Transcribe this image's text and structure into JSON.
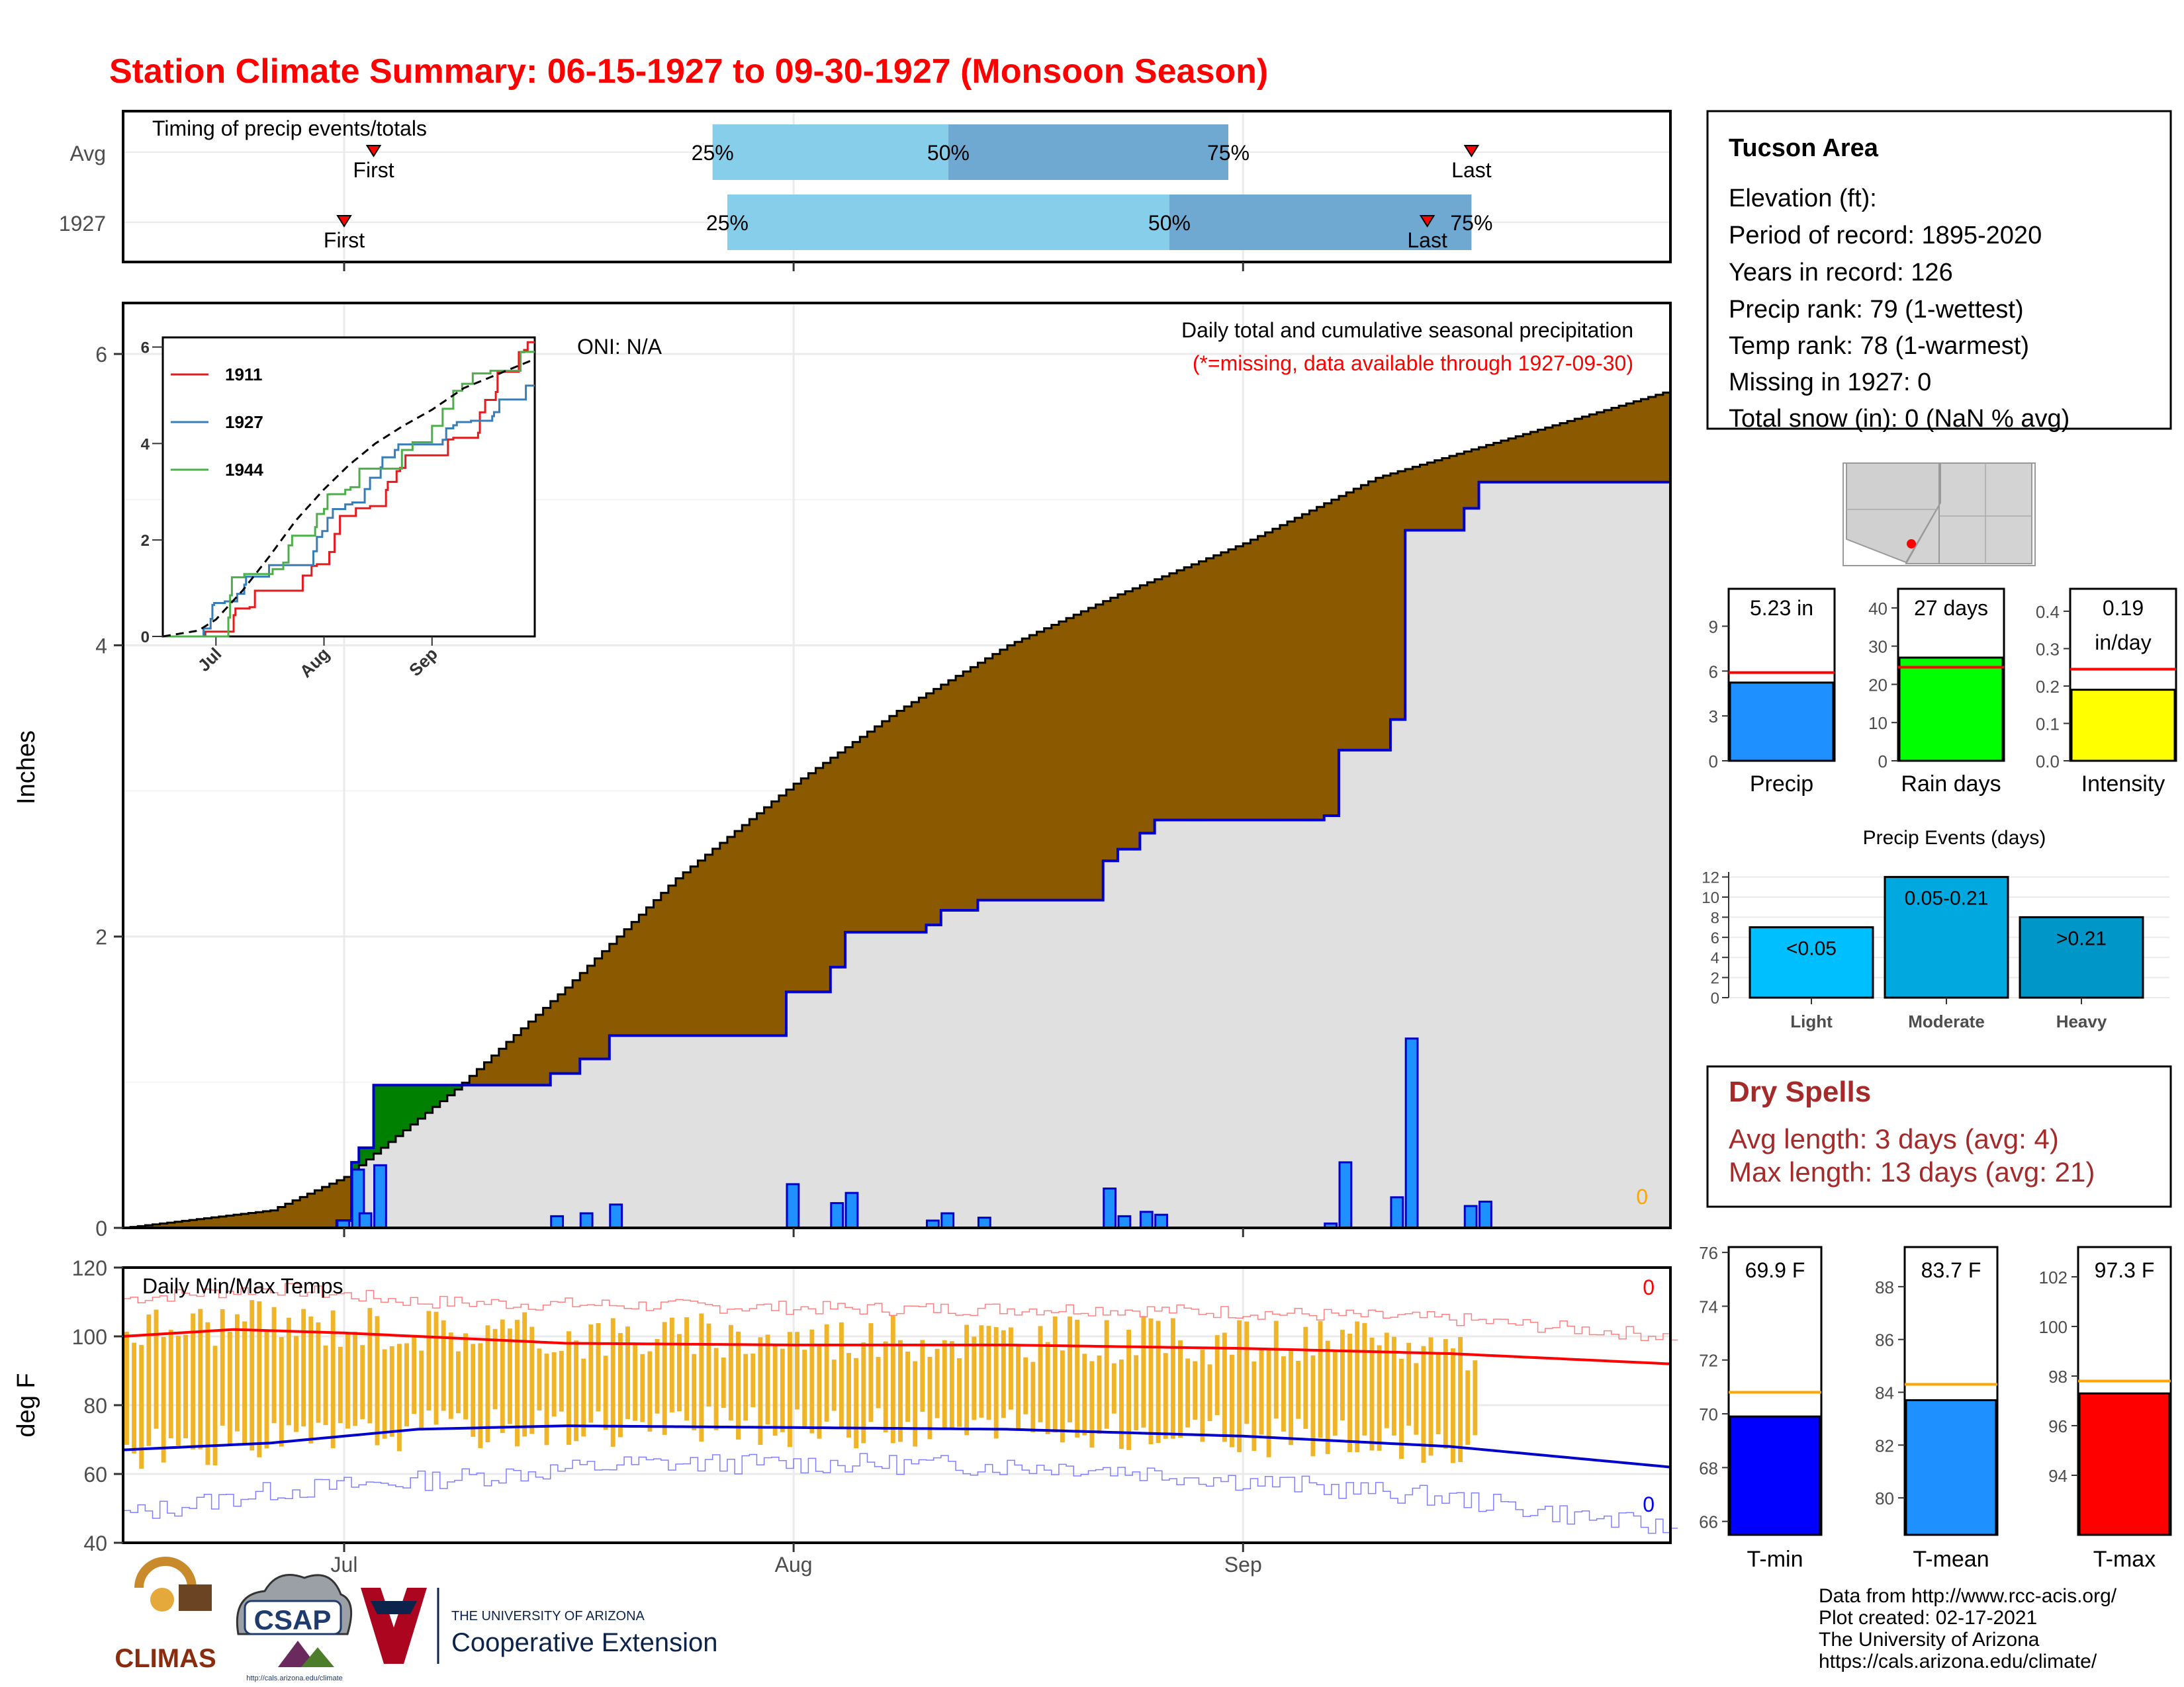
{
  "title": "Station Climate Summary: 06-15-1927 to 09-30-1927 (Monsoon Season)",
  "timing": {
    "label": "Timing of precip events/totals",
    "rows": [
      {
        "name": "Avg",
        "first_day": 34,
        "last_day": 183,
        "p25": 80,
        "p50": 112,
        "p75": 150
      },
      {
        "name": "1927",
        "first_day": 30,
        "last_day": 177,
        "p25": 82,
        "p50": 142,
        "p75": 183
      }
    ],
    "pct_labels": [
      "25%",
      "50%",
      "75%"
    ],
    "first_label": "First",
    "last_label": "Last"
  },
  "month_ticks": [
    {
      "label": "Jul",
      "day": 30
    },
    {
      "label": "Aug",
      "day": 91
    },
    {
      "label": "Sep",
      "day": 152
    }
  ],
  "main_chart": {
    "ylabel": "Inches",
    "yticks": [
      0,
      2,
      4,
      6
    ],
    "ylim": [
      0,
      6.35
    ],
    "oni": "ONI: N/A",
    "subtitle": "Daily total and cumulative seasonal precipitation",
    "note": "(*=missing, data available through 1927-09-30)",
    "missing_count": "0"
  },
  "inset": {
    "yticks": [
      "0",
      "2",
      "4",
      "6"
    ],
    "xticks": [
      "Jul",
      "Aug",
      "Sep"
    ],
    "legend": [
      {
        "name": "1911",
        "color": "#e41a1c"
      },
      {
        "name": "1927",
        "color": "#377eb8"
      },
      {
        "name": "1944",
        "color": "#4daf4a"
      }
    ]
  },
  "temp_chart": {
    "ylabel": "deg F",
    "label": "Daily Min/Max Temps",
    "yticks": [
      40,
      60,
      80,
      100,
      120
    ],
    "ylim": [
      40,
      120
    ],
    "max_missing": "0",
    "min_missing": "0"
  },
  "info": {
    "title": "Tucson Area",
    "lines": [
      "Elevation (ft):",
      "Period of record: 1895-2020",
      "Years in record: 126",
      "Precip rank: 79 (1-wettest)",
      "Temp rank: 78 (1-warmest)",
      "Missing in 1927: 0",
      "Total snow (in): 0 (NaN % avg)"
    ]
  },
  "mini_bars": [
    {
      "name": "Precip",
      "value": 5.23,
      "avg": 5.9,
      "label": "5.23 in",
      "ymax": 11.5,
      "ticks": [
        "0",
        "3",
        "6",
        "9"
      ],
      "tick_vals": [
        0,
        3,
        6,
        9
      ],
      "color": "#1e90ff"
    },
    {
      "name": "Rain days",
      "value": 27,
      "avg": 24.5,
      "label": "27 days",
      "ymax": 45,
      "ticks": [
        "0",
        "10",
        "20",
        "30",
        "40"
      ],
      "tick_vals": [
        0,
        10,
        20,
        30,
        40
      ],
      "color": "#00ff00"
    },
    {
      "name": "Intensity",
      "value": 0.19,
      "avg": 0.245,
      "label": "0.19",
      "label2": "in/day",
      "ymax": 0.46,
      "ticks": [
        "0.0",
        "0.1",
        "0.2",
        "0.3",
        "0.4"
      ],
      "tick_vals": [
        0,
        0.1,
        0.2,
        0.3,
        0.4
      ],
      "color": "#ffff00"
    }
  ],
  "events": {
    "title": "Precip Events (days)",
    "categories": [
      "Light",
      "Moderate",
      "Heavy"
    ],
    "values": [
      7,
      12,
      8
    ],
    "labels": [
      "<0.05",
      "0.05-0.21",
      ">0.21"
    ],
    "colors": [
      "#00bfff",
      "#00a8e0",
      "#0096c7"
    ],
    "yticks": [
      "0",
      "2",
      "4",
      "6",
      "8",
      "10",
      "12"
    ]
  },
  "dry_spells": {
    "title": "Dry Spells",
    "avg_line": "Avg length: 3 days (avg: 4)",
    "max_line": "Max length: 13 days (avg: 21)"
  },
  "temp_bars": [
    {
      "name": "T-min",
      "value": 69.9,
      "avg": 70.8,
      "label": "69.9 F",
      "ylim": [
        65.5,
        76.2
      ],
      "ticks": [
        "66",
        "68",
        "70",
        "72",
        "74",
        "76"
      ],
      "tick_vals": [
        66,
        68,
        70,
        72,
        74,
        76
      ],
      "color": "#0000ff"
    },
    {
      "name": "T-mean",
      "value": 83.7,
      "avg": 84.3,
      "label": "83.7 F",
      "ylim": [
        78.6,
        89.5
      ],
      "ticks": [
        "80",
        "82",
        "84",
        "86",
        "88"
      ],
      "tick_vals": [
        80,
        82,
        84,
        86,
        88
      ],
      "color": "#1e90ff"
    },
    {
      "name": "T-max",
      "value": 97.3,
      "avg": 97.8,
      "label": "97.3 F",
      "ylim": [
        91.6,
        103.2
      ],
      "ticks": [
        "94",
        "96",
        "98",
        "100",
        "102"
      ],
      "tick_vals": [
        94,
        96,
        98,
        100,
        102
      ],
      "color": "#ff0000"
    }
  ],
  "footer": {
    "lines": [
      "Data from http://www.rcc-acis.org/",
      "Plot created: 02-17-2021",
      "The University of Arizona",
      "https://cals.arizona.edu/climate/"
    ],
    "logos": {
      "climas": "CLIMAS",
      "csap": "CSAP",
      "csap_url": "http://cals.arizona.edu/climate",
      "ua_top": "THE UNIVERSITY OF ARIZONA",
      "ua_bottom": "Cooperative Extension"
    }
  },
  "chart_data": {
    "type": "area",
    "x_start": "1927-06-15",
    "x_end": "1927-09-30",
    "daily_precip": [
      {
        "day": 29,
        "value": 0.05
      },
      {
        "day": 31,
        "value": 0.4
      },
      {
        "day": 32,
        "value": 0.1
      },
      {
        "day": 34,
        "value": 0.43
      },
      {
        "day": 58,
        "value": 0.08
      },
      {
        "day": 62,
        "value": 0.1
      },
      {
        "day": 66,
        "value": 0.16
      },
      {
        "day": 90,
        "value": 0.3
      },
      {
        "day": 96,
        "value": 0.17
      },
      {
        "day": 98,
        "value": 0.24
      },
      {
        "day": 109,
        "value": 0.05
      },
      {
        "day": 111,
        "value": 0.1
      },
      {
        "day": 116,
        "value": 0.07
      },
      {
        "day": 133,
        "value": 0.27
      },
      {
        "day": 135,
        "value": 0.08
      },
      {
        "day": 138,
        "value": 0.11
      },
      {
        "day": 140,
        "value": 0.09
      },
      {
        "day": 163,
        "value": 0.03
      },
      {
        "day": 165,
        "value": 0.45
      },
      {
        "day": 172,
        "value": 0.21
      },
      {
        "day": 174,
        "value": 1.3
      },
      {
        "day": 182,
        "value": 0.15
      },
      {
        "day": 184,
        "value": 0.18
      }
    ],
    "avg_cumulative": [
      {
        "day": 0,
        "value": 0
      },
      {
        "day": 20,
        "value": 0.12
      },
      {
        "day": 30,
        "value": 0.35
      },
      {
        "day": 45,
        "value": 0.95
      },
      {
        "day": 60,
        "value": 1.65
      },
      {
        "day": 75,
        "value": 2.4
      },
      {
        "day": 91,
        "value": 3.05
      },
      {
        "day": 105,
        "value": 3.55
      },
      {
        "day": 120,
        "value": 4.0
      },
      {
        "day": 135,
        "value": 4.35
      },
      {
        "day": 152,
        "value": 4.7
      },
      {
        "day": 170,
        "value": 5.15
      },
      {
        "day": 190,
        "value": 5.45
      },
      {
        "day": 210,
        "value": 5.75
      }
    ],
    "temps": {
      "tmax_avg": [
        {
          "day": 0,
          "value": 100
        },
        {
          "day": 15,
          "value": 102
        },
        {
          "day": 30,
          "value": 101
        },
        {
          "day": 60,
          "value": 98
        },
        {
          "day": 91,
          "value": 97.5
        },
        {
          "day": 120,
          "value": 97.5
        },
        {
          "day": 152,
          "value": 96.5
        },
        {
          "day": 180,
          "value": 95
        },
        {
          "day": 210,
          "value": 92
        }
      ],
      "tmin_avg": [
        {
          "day": 0,
          "value": 67
        },
        {
          "day": 20,
          "value": 69
        },
        {
          "day": 40,
          "value": 73
        },
        {
          "day": 60,
          "value": 74
        },
        {
          "day": 91,
          "value": 73.5
        },
        {
          "day": 120,
          "value": 73
        },
        {
          "day": 152,
          "value": 71
        },
        {
          "day": 180,
          "value": 68
        },
        {
          "day": 210,
          "value": 62
        }
      ],
      "tmax_record": [
        {
          "day": 0,
          "value": 111
        },
        {
          "day": 20,
          "value": 114
        },
        {
          "day": 40,
          "value": 110
        },
        {
          "day": 70,
          "value": 109
        },
        {
          "day": 100,
          "value": 108
        },
        {
          "day": 130,
          "value": 108
        },
        {
          "day": 152,
          "value": 107
        },
        {
          "day": 180,
          "value": 105
        },
        {
          "day": 210,
          "value": 100
        }
      ],
      "tmin_record": [
        {
          "day": 0,
          "value": 48
        },
        {
          "day": 20,
          "value": 55
        },
        {
          "day": 40,
          "value": 58
        },
        {
          "day": 70,
          "value": 63
        },
        {
          "day": 100,
          "value": 63
        },
        {
          "day": 130,
          "value": 62
        },
        {
          "day": 152,
          "value": 58
        },
        {
          "day": 180,
          "value": 53
        },
        {
          "day": 210,
          "value": 44
        }
      ]
    }
  }
}
